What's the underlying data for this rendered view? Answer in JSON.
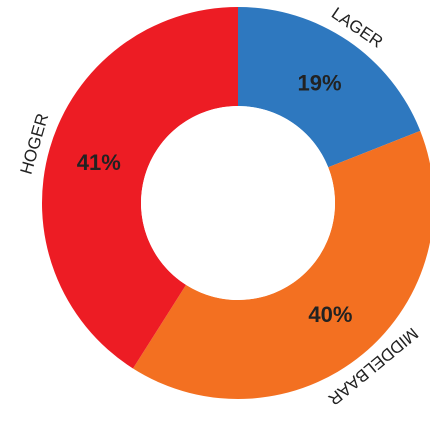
{
  "chart_data": {
    "type": "pie",
    "donut": true,
    "categories": [
      "LAGER",
      "MIDDELBAAR",
      "HOGER"
    ],
    "values": [
      19,
      40,
      41
    ],
    "value_labels": [
      "19%",
      "40%",
      "41%"
    ],
    "colors": [
      "#2e78bf",
      "#f37021",
      "#ed1c24"
    ],
    "start": "12 o'clock",
    "direction": "clockwise",
    "legend": "none"
  }
}
